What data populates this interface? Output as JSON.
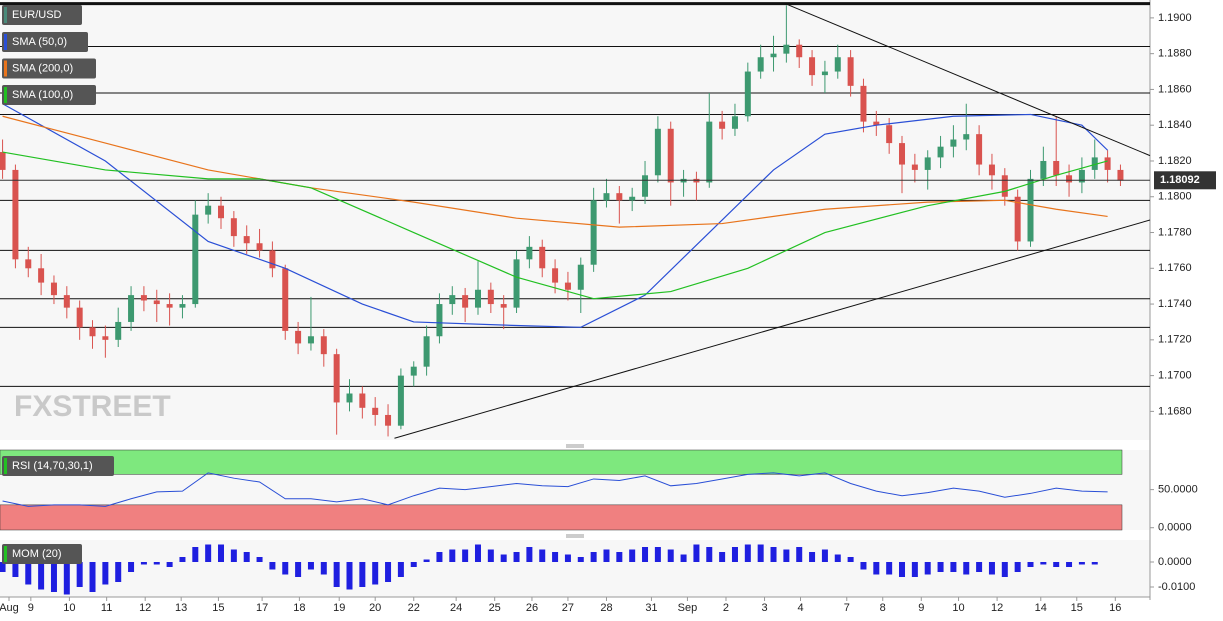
{
  "chart_data": [
    {
      "type": "candlestick",
      "name": "EUR/USD",
      "color": "#4a8a7a",
      "up_color": "#3d9970",
      "down_color": "#d9534f",
      "watermark": "FXSTREET",
      "xlim": [
        -0.2,
        89.3
      ],
      "ylim": [
        1.1664,
        1.191
      ],
      "yticks": [
        {
          "value": 1.168,
          "label": "1.1680"
        },
        {
          "value": 1.17,
          "label": "1.1700"
        },
        {
          "value": 1.172,
          "label": "1.1720"
        },
        {
          "value": 1.174,
          "label": "1.1740"
        },
        {
          "value": 1.176,
          "label": "1.1760"
        },
        {
          "value": 1.178,
          "label": "1.1780"
        },
        {
          "value": 1.18,
          "label": "1.1800"
        },
        {
          "value": 1.182,
          "label": "1.1820"
        },
        {
          "value": 1.184,
          "label": "1.1840"
        },
        {
          "value": 1.186,
          "label": "1.1860"
        },
        {
          "value": 1.188,
          "label": "1.1880"
        },
        {
          "value": 1.19,
          "label": "1.1900"
        }
      ],
      "xticks": [
        {
          "value": 0.5,
          "label": "Aug"
        },
        {
          "value": 2.2,
          "label": "9"
        },
        {
          "value": 5.2,
          "label": "10"
        },
        {
          "value": 8.1,
          "label": "11"
        },
        {
          "value": 11.1,
          "label": "12"
        },
        {
          "value": 13.9,
          "label": "13"
        },
        {
          "value": 16.8,
          "label": "15"
        },
        {
          "value": 20.2,
          "label": "17"
        },
        {
          "value": 23.1,
          "label": "18"
        },
        {
          "value": 26.2,
          "label": "19"
        },
        {
          "value": 29.0,
          "label": "20"
        },
        {
          "value": 32.0,
          "label": "22"
        },
        {
          "value": 35.3,
          "label": "24"
        },
        {
          "value": 38.3,
          "label": "25"
        },
        {
          "value": 41.2,
          "label": "26"
        },
        {
          "value": 44.0,
          "label": "27"
        },
        {
          "value": 47.0,
          "label": "28"
        },
        {
          "value": 50.5,
          "label": "31"
        },
        {
          "value": 53.3,
          "label": "Sep"
        },
        {
          "value": 56.3,
          "label": "2"
        },
        {
          "value": 59.3,
          "label": "3"
        },
        {
          "value": 62.1,
          "label": "4"
        },
        {
          "value": 65.7,
          "label": "7"
        },
        {
          "value": 68.5,
          "label": "8"
        },
        {
          "value": 71.5,
          "label": "9"
        },
        {
          "value": 74.4,
          "label": "10"
        },
        {
          "value": 77.4,
          "label": "12"
        },
        {
          "value": 80.8,
          "label": "14"
        },
        {
          "value": 83.6,
          "label": "15"
        },
        {
          "value": 86.6,
          "label": "16"
        }
      ],
      "ohlc": [
        [
          1.1825,
          1.1832,
          1.181,
          1.1815
        ],
        [
          1.1815,
          1.1818,
          1.176,
          1.1765
        ],
        [
          1.1765,
          1.1772,
          1.1755,
          1.176
        ],
        [
          1.176,
          1.1768,
          1.1745,
          1.1752
        ],
        [
          1.1752,
          1.1756,
          1.174,
          1.1745
        ],
        [
          1.1745,
          1.175,
          1.1732,
          1.1738
        ],
        [
          1.1738,
          1.1742,
          1.172,
          1.1727
        ],
        [
          1.1727,
          1.1731,
          1.1715,
          1.1722
        ],
        [
          1.1722,
          1.1728,
          1.171,
          1.172
        ],
        [
          1.172,
          1.1738,
          1.1716,
          1.173
        ],
        [
          1.173,
          1.175,
          1.1725,
          1.1745
        ],
        [
          1.1745,
          1.175,
          1.1736,
          1.1742
        ],
        [
          1.1742,
          1.1748,
          1.173,
          1.174
        ],
        [
          1.174,
          1.1746,
          1.1728,
          1.1738
        ],
        [
          1.1738,
          1.1745,
          1.1732,
          1.174
        ],
        [
          1.174,
          1.1798,
          1.1738,
          1.179
        ],
        [
          1.179,
          1.1802,
          1.1785,
          1.1795
        ],
        [
          1.1795,
          1.18,
          1.1782,
          1.1788
        ],
        [
          1.1788,
          1.1792,
          1.1772,
          1.1778
        ],
        [
          1.1778,
          1.1784,
          1.1768,
          1.1774
        ],
        [
          1.1774,
          1.1782,
          1.1766,
          1.177
        ],
        [
          1.177,
          1.1775,
          1.1755,
          1.176
        ],
        [
          1.176,
          1.1762,
          1.172,
          1.1725
        ],
        [
          1.1725,
          1.173,
          1.1712,
          1.1718
        ],
        [
          1.1718,
          1.1744,
          1.1714,
          1.1722
        ],
        [
          1.1722,
          1.1726,
          1.1705,
          1.1712
        ],
        [
          1.1712,
          1.1715,
          1.1667,
          1.1685
        ],
        [
          1.1685,
          1.1698,
          1.168,
          1.169
        ],
        [
          1.169,
          1.1694,
          1.1676,
          1.1682
        ],
        [
          1.1682,
          1.1688,
          1.1672,
          1.1678
        ],
        [
          1.1678,
          1.1684,
          1.1666,
          1.1672
        ],
        [
          1.1672,
          1.1704,
          1.167,
          1.17
        ],
        [
          1.17,
          1.1708,
          1.1694,
          1.1705
        ],
        [
          1.1705,
          1.1728,
          1.17,
          1.1722
        ],
        [
          1.1722,
          1.1746,
          1.1718,
          1.174
        ],
        [
          1.174,
          1.175,
          1.1734,
          1.1745
        ],
        [
          1.1745,
          1.1749,
          1.173,
          1.1738
        ],
        [
          1.1738,
          1.1764,
          1.1734,
          1.1748
        ],
        [
          1.1748,
          1.1752,
          1.1735,
          1.174
        ],
        [
          1.174,
          1.1745,
          1.1726,
          1.1738
        ],
        [
          1.1738,
          1.177,
          1.1735,
          1.1765
        ],
        [
          1.1765,
          1.1778,
          1.176,
          1.1772
        ],
        [
          1.1772,
          1.1776,
          1.1755,
          1.176
        ],
        [
          1.176,
          1.1765,
          1.1746,
          1.1752
        ],
        [
          1.1752,
          1.1758,
          1.1742,
          1.1748
        ],
        [
          1.1748,
          1.1766,
          1.1735,
          1.1762
        ],
        [
          1.1762,
          1.1805,
          1.1758,
          1.1798
        ],
        [
          1.1798,
          1.181,
          1.1794,
          1.1802
        ],
        [
          1.1802,
          1.1806,
          1.1785,
          1.1798
        ],
        [
          1.1798,
          1.1805,
          1.1792,
          1.18
        ],
        [
          1.18,
          1.182,
          1.1796,
          1.1812
        ],
        [
          1.1812,
          1.1845,
          1.1808,
          1.1838
        ],
        [
          1.1838,
          1.1842,
          1.1795,
          1.1808
        ],
        [
          1.1808,
          1.1815,
          1.18,
          1.181
        ],
        [
          1.181,
          1.1814,
          1.1798,
          1.1808
        ],
        [
          1.1808,
          1.1858,
          1.1805,
          1.1842
        ],
        [
          1.1842,
          1.1848,
          1.1832,
          1.1838
        ],
        [
          1.1838,
          1.1852,
          1.1834,
          1.1845
        ],
        [
          1.1845,
          1.1875,
          1.1842,
          1.187
        ],
        [
          1.187,
          1.1885,
          1.1866,
          1.1878
        ],
        [
          1.1878,
          1.189,
          1.187,
          1.188
        ],
        [
          1.188,
          1.1907,
          1.1875,
          1.1885
        ],
        [
          1.1885,
          1.1888,
          1.1872,
          1.1878
        ],
        [
          1.1878,
          1.1882,
          1.1862,
          1.1868
        ],
        [
          1.1868,
          1.1876,
          1.1858,
          1.187
        ],
        [
          1.187,
          1.1885,
          1.1866,
          1.1878
        ],
        [
          1.1878,
          1.1882,
          1.1856,
          1.1862
        ],
        [
          1.1862,
          1.1866,
          1.1836,
          1.1842
        ],
        [
          1.1842,
          1.1848,
          1.1834,
          1.184
        ],
        [
          1.184,
          1.1844,
          1.1824,
          1.183
        ],
        [
          1.183,
          1.1834,
          1.1802,
          1.1818
        ],
        [
          1.1818,
          1.1824,
          1.1808,
          1.1815
        ],
        [
          1.1815,
          1.1826,
          1.1804,
          1.1822
        ],
        [
          1.1822,
          1.1834,
          1.1816,
          1.1828
        ],
        [
          1.1828,
          1.184,
          1.1822,
          1.1832
        ],
        [
          1.1832,
          1.1852,
          1.1826,
          1.1835
        ],
        [
          1.1835,
          1.184,
          1.1812,
          1.1818
        ],
        [
          1.1818,
          1.1824,
          1.1804,
          1.1812
        ],
        [
          1.1812,
          1.1816,
          1.1795,
          1.18
        ],
        [
          1.18,
          1.1804,
          1.177,
          1.1775
        ],
        [
          1.1775,
          1.1815,
          1.1772,
          1.181
        ],
        [
          1.181,
          1.1828,
          1.1806,
          1.182
        ],
        [
          1.182,
          1.1845,
          1.1806,
          1.1812
        ],
        [
          1.1812,
          1.1818,
          1.18,
          1.1808
        ],
        [
          1.1808,
          1.1822,
          1.1802,
          1.1815
        ],
        [
          1.1815,
          1.1832,
          1.181,
          1.1822
        ],
        [
          1.1822,
          1.1826,
          1.1808,
          1.1815
        ],
        [
          1.1815,
          1.1818,
          1.1806,
          1.1809
        ]
      ],
      "overlays": [
        {
          "name": "SMA (50,0)",
          "color": "#2a4fd6",
          "x": [
            0,
            8,
            16,
            22,
            28,
            32,
            40,
            45,
            50,
            55,
            60,
            64,
            68,
            74,
            80,
            84,
            86
          ],
          "values": [
            1.1852,
            1.182,
            1.1775,
            1.176,
            1.174,
            1.173,
            1.1728,
            1.1727,
            1.1745,
            1.178,
            1.1815,
            1.1835,
            1.184,
            1.1845,
            1.1846,
            1.184,
            1.1826
          ]
        },
        {
          "name": "SMA (200,0)",
          "color": "#e8741c",
          "x": [
            0,
            8,
            16,
            24,
            32,
            40,
            48,
            56,
            64,
            72,
            78,
            82,
            86
          ],
          "values": [
            1.1845,
            1.183,
            1.1815,
            1.1805,
            1.1797,
            1.1788,
            1.1783,
            1.1785,
            1.1793,
            1.1797,
            1.1798,
            1.1793,
            1.1789
          ]
        },
        {
          "name": "SMA (100,0)",
          "color": "#22c022",
          "x": [
            0,
            8,
            16,
            20,
            24,
            32,
            40,
            46,
            52,
            58,
            64,
            72,
            78,
            82,
            86
          ],
          "values": [
            1.1825,
            1.1815,
            1.181,
            1.181,
            1.1805,
            1.178,
            1.1755,
            1.1743,
            1.1747,
            1.176,
            1.178,
            1.1795,
            1.1803,
            1.1812,
            1.182
          ]
        }
      ],
      "levels": [
        1.1908,
        1.1884,
        1.1858,
        1.1846,
        1.1798,
        1.177,
        1.1743,
        1.1727,
        1.1694
      ],
      "trendlines": [
        {
          "x": [
            60.9,
            89.3
          ],
          "values": [
            1.1908,
            1.1823
          ]
        },
        {
          "x": [
            30.5,
            89.3
          ],
          "values": [
            1.1665,
            1.1787
          ]
        }
      ],
      "last_price": 1.18092
    },
    {
      "type": "line",
      "name": "RSI (14,70,30,1)",
      "color": "#2a4fd6",
      "xlim": [
        -0.2,
        89.3
      ],
      "ylim": [
        -3,
        102
      ],
      "overbought": 70,
      "oversold": 30,
      "overbought_color": "#7ee87e",
      "oversold_color": "#f08080",
      "yticks": [
        {
          "value": 0,
          "label": "0.0000"
        },
        {
          "value": 50,
          "label": "50.0000"
        }
      ],
      "x": [
        0,
        2,
        4,
        6,
        8,
        10,
        12,
        14,
        16,
        18,
        20,
        22,
        24,
        26,
        28,
        30,
        32,
        34,
        36,
        38,
        40,
        42,
        44,
        46,
        48,
        50,
        52,
        54,
        56,
        58,
        60,
        62,
        64,
        66,
        68,
        70,
        72,
        74,
        76,
        78,
        80,
        82,
        84,
        86
      ],
      "values": [
        35,
        28,
        30,
        30,
        28,
        38,
        47,
        48,
        72,
        65,
        60,
        38,
        38,
        34,
        38,
        30,
        42,
        52,
        50,
        54,
        58,
        55,
        54,
        64,
        62,
        68,
        55,
        58,
        64,
        70,
        72,
        68,
        72,
        58,
        48,
        42,
        46,
        52,
        48,
        40,
        45,
        52,
        48,
        47
      ]
    },
    {
      "type": "bar",
      "name": "MOM (20)",
      "color": "#1f1fe0",
      "xlim": [
        -0.2,
        89.3
      ],
      "ylim": [
        -0.014,
        0.0088
      ],
      "yticks": [
        {
          "value": -0.01,
          "label": "-0.0100"
        },
        {
          "value": 0,
          "label": "0.0000"
        }
      ],
      "values": [
        -0.004,
        -0.006,
        -0.009,
        -0.011,
        -0.012,
        -0.013,
        -0.01,
        -0.012,
        -0.009,
        -0.008,
        -0.004,
        -0.001,
        -0.001,
        -0.002,
        0.002,
        0.006,
        0.007,
        0.007,
        0.005,
        0.004,
        0.002,
        -0.003,
        -0.005,
        -0.006,
        -0.003,
        -0.005,
        -0.01,
        -0.011,
        -0.01,
        -0.009,
        -0.008,
        -0.006,
        -0.002,
        0.001,
        0.004,
        0.005,
        0.005,
        0.007,
        0.005,
        0.003,
        0.004,
        0.006,
        0.005,
        0.004,
        0.003,
        0.002,
        0.004,
        0.005,
        0.004,
        0.005,
        0.006,
        0.006,
        0.005,
        0.003,
        0.007,
        0.006,
        0.004,
        0.006,
        0.007,
        0.007,
        0.006,
        0.005,
        0.006,
        0.004,
        0.005,
        0.003,
        0.002,
        -0.003,
        -0.005,
        -0.005,
        -0.006,
        -0.006,
        -0.005,
        -0.004,
        -0.004,
        -0.005,
        -0.004,
        -0.005,
        -0.006,
        -0.004,
        -0.002,
        -0.001,
        -0.002,
        -0.002,
        -0.001,
        -0.001,
        0,
        0
      ]
    }
  ]
}
